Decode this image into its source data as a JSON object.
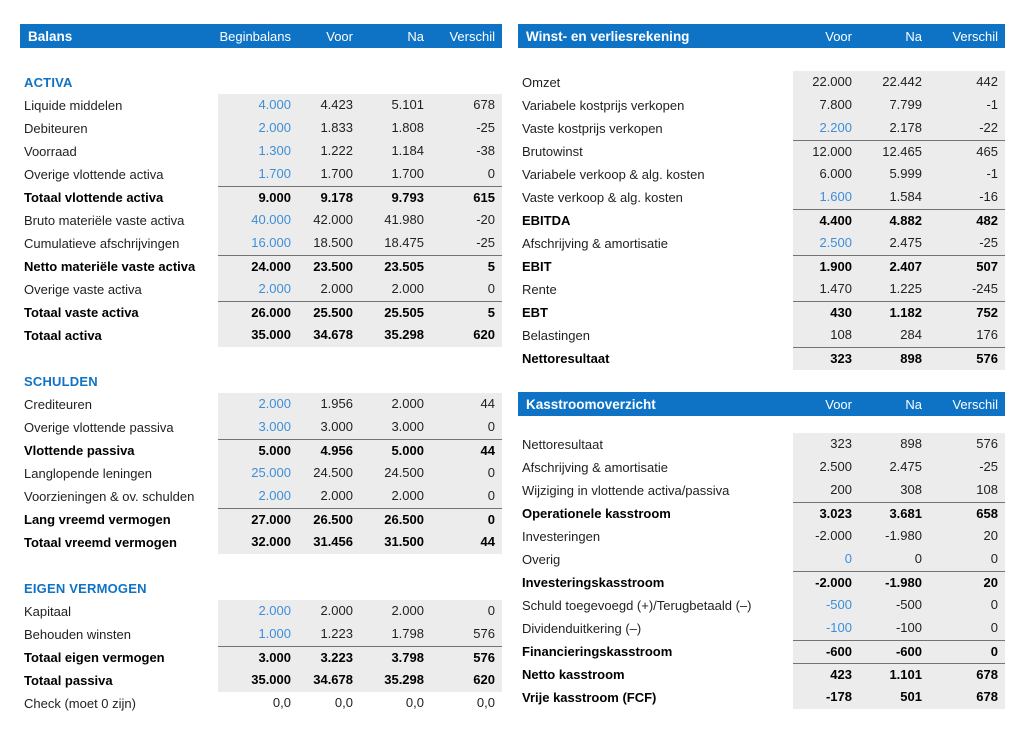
{
  "colors": {
    "header_bar_blue": "#0e73c5",
    "section_heading_blue": "#0f72c4",
    "input_value_blue": "#3f8ed8",
    "calc_block_gray": "#ececec",
    "subtotal_rule_gray": "#737373",
    "text": "#1f1f1f"
  },
  "balans": {
    "title": "Balans",
    "columns": [
      "Beginbalans",
      "Voor",
      "Na",
      "Verschil"
    ],
    "rows": [
      {
        "type": "section",
        "label": "ACTIVA"
      },
      {
        "label": "Liquide middelen",
        "values": [
          "4.000",
          "4.423",
          "5.101",
          "678"
        ],
        "gray": true,
        "blue": [
          0
        ]
      },
      {
        "label": "Debiteuren",
        "values": [
          "2.000",
          "1.833",
          "1.808",
          "-25"
        ],
        "gray": true,
        "blue": [
          0
        ]
      },
      {
        "label": "Voorraad",
        "values": [
          "1.300",
          "1.222",
          "1.184",
          "-38"
        ],
        "gray": true,
        "blue": [
          0
        ]
      },
      {
        "label": "Overige vlottende activa",
        "values": [
          "1.700",
          "1.700",
          "1.700",
          "0"
        ],
        "gray": true,
        "blue": [
          0
        ]
      },
      {
        "label": "Totaal vlottende activa",
        "values": [
          "9.000",
          "9.178",
          "9.793",
          "615"
        ],
        "gray": true,
        "bold": true,
        "line": true
      },
      {
        "label": "Bruto materiële vaste activa",
        "values": [
          "40.000",
          "42.000",
          "41.980",
          "-20"
        ],
        "gray": true,
        "blue": [
          0
        ]
      },
      {
        "label": "Cumulatieve afschrijvingen",
        "values": [
          "16.000",
          "18.500",
          "18.475",
          "-25"
        ],
        "gray": true,
        "blue": [
          0
        ]
      },
      {
        "label": "Netto materiële vaste activa",
        "values": [
          "24.000",
          "23.500",
          "23.505",
          "5"
        ],
        "gray": true,
        "bold": true,
        "line": true
      },
      {
        "label": "Overige vaste activa",
        "values": [
          "2.000",
          "2.000",
          "2.000",
          "0"
        ],
        "gray": true,
        "blue": [
          0
        ]
      },
      {
        "label": "Totaal vaste activa",
        "values": [
          "26.000",
          "25.500",
          "25.505",
          "5"
        ],
        "gray": true,
        "bold": true,
        "line": true
      },
      {
        "label": "Totaal activa",
        "values": [
          "35.000",
          "34.678",
          "35.298",
          "620"
        ],
        "gray": true,
        "bold": true
      },
      {
        "type": "blank"
      },
      {
        "type": "section",
        "label": "SCHULDEN"
      },
      {
        "label": "Crediteuren",
        "values": [
          "2.000",
          "1.956",
          "2.000",
          "44"
        ],
        "gray": true,
        "blue": [
          0
        ]
      },
      {
        "label": "Overige vlottende passiva",
        "values": [
          "3.000",
          "3.000",
          "3.000",
          "0"
        ],
        "gray": true,
        "blue": [
          0
        ]
      },
      {
        "label": "Vlottende passiva",
        "values": [
          "5.000",
          "4.956",
          "5.000",
          "44"
        ],
        "gray": true,
        "bold": true,
        "line": true
      },
      {
        "label": "Langlopende leningen",
        "values": [
          "25.000",
          "24.500",
          "24.500",
          "0"
        ],
        "gray": true,
        "blue": [
          0
        ]
      },
      {
        "label": "Voorzieningen & ov. schulden",
        "values": [
          "2.000",
          "2.000",
          "2.000",
          "0"
        ],
        "gray": true,
        "blue": [
          0
        ]
      },
      {
        "label": "Lang vreemd vermogen",
        "values": [
          "27.000",
          "26.500",
          "26.500",
          "0"
        ],
        "gray": true,
        "bold": true,
        "line": true
      },
      {
        "label": "Totaal vreemd vermogen",
        "values": [
          "32.000",
          "31.456",
          "31.500",
          "44"
        ],
        "gray": true,
        "bold": true
      },
      {
        "type": "blank"
      },
      {
        "type": "section",
        "label": "EIGEN VERMOGEN"
      },
      {
        "label": "Kapitaal",
        "values": [
          "2.000",
          "2.000",
          "2.000",
          "0"
        ],
        "gray": true,
        "blue": [
          0
        ]
      },
      {
        "label": "Behouden winsten",
        "values": [
          "1.000",
          "1.223",
          "1.798",
          "576"
        ],
        "gray": true,
        "blue": [
          0
        ]
      },
      {
        "label": "Totaal eigen vermogen",
        "values": [
          "3.000",
          "3.223",
          "3.798",
          "576"
        ],
        "gray": true,
        "bold": true,
        "line": true
      },
      {
        "label": "Totaal passiva",
        "values": [
          "35.000",
          "34.678",
          "35.298",
          "620"
        ],
        "gray": true,
        "bold": true
      },
      {
        "label": "Check (moet 0 zijn)",
        "values": [
          "0,0",
          "0,0",
          "0,0",
          "0,0"
        ]
      }
    ]
  },
  "pnl": {
    "title": "Winst- en verliesrekening",
    "columns": [
      "Voor",
      "Na",
      "Verschil"
    ],
    "rows": [
      {
        "label": "Omzet",
        "values": [
          "22.000",
          "22.442",
          "442"
        ],
        "gray": true
      },
      {
        "label": "Variabele kostprijs verkopen",
        "values": [
          "7.800",
          "7.799",
          "-1"
        ],
        "gray": true
      },
      {
        "label": "Vaste kostprijs verkopen",
        "values": [
          "2.200",
          "2.178",
          "-22"
        ],
        "gray": true,
        "blue": [
          0
        ]
      },
      {
        "label": "Brutowinst",
        "values": [
          "12.000",
          "12.465",
          "465"
        ],
        "gray": true,
        "line": true
      },
      {
        "label": "Variabele verkoop & alg. kosten",
        "values": [
          "6.000",
          "5.999",
          "-1"
        ],
        "gray": true
      },
      {
        "label": "Vaste verkoop & alg. kosten",
        "values": [
          "1.600",
          "1.584",
          "-16"
        ],
        "gray": true,
        "blue": [
          0
        ]
      },
      {
        "label": "EBITDA",
        "values": [
          "4.400",
          "4.882",
          "482"
        ],
        "gray": true,
        "bold": true,
        "line": true
      },
      {
        "label": "Afschrijving & amortisatie",
        "values": [
          "2.500",
          "2.475",
          "-25"
        ],
        "gray": true,
        "blue": [
          0
        ]
      },
      {
        "label": "EBIT",
        "values": [
          "1.900",
          "2.407",
          "507"
        ],
        "gray": true,
        "bold": true,
        "line": true
      },
      {
        "label": "Rente",
        "values": [
          "1.470",
          "1.225",
          "-245"
        ],
        "gray": true
      },
      {
        "label": "EBT",
        "values": [
          "430",
          "1.182",
          "752"
        ],
        "gray": true,
        "bold": true,
        "line": true
      },
      {
        "label": "Belastingen",
        "values": [
          "108",
          "284",
          "176"
        ],
        "gray": true
      },
      {
        "label": "Nettoresultaat",
        "values": [
          "323",
          "898",
          "576"
        ],
        "gray": true,
        "bold": true,
        "line": true
      }
    ]
  },
  "cashflow": {
    "title": "Kasstroomoverzicht",
    "columns": [
      "Voor",
      "Na",
      "Verschil"
    ],
    "rows": [
      {
        "label": "Nettoresultaat",
        "values": [
          "323",
          "898",
          "576"
        ],
        "gray": true
      },
      {
        "label": "Afschrijving & amortisatie",
        "values": [
          "2.500",
          "2.475",
          "-25"
        ],
        "gray": true
      },
      {
        "label": "Wijziging in vlottende activa/passiva",
        "values": [
          "200",
          "308",
          "108"
        ],
        "gray": true
      },
      {
        "label": "Operationele kasstroom",
        "values": [
          "3.023",
          "3.681",
          "658"
        ],
        "gray": true,
        "bold": true,
        "line": true
      },
      {
        "label": "Investeringen",
        "values": [
          "-2.000",
          "-1.980",
          "20"
        ],
        "gray": true
      },
      {
        "label": "Overig",
        "values": [
          "0",
          "0",
          "0"
        ],
        "gray": true,
        "blue": [
          0
        ]
      },
      {
        "label": "Investeringskasstroom",
        "values": [
          "-2.000",
          "-1.980",
          "20"
        ],
        "gray": true,
        "bold": true,
        "line": true
      },
      {
        "label": "Schuld toegevoegd (+)/Terugbetaald (–)",
        "values": [
          "-500",
          "-500",
          "0"
        ],
        "gray": true,
        "blue": [
          0
        ]
      },
      {
        "label": "Dividenduitkering (–)",
        "values": [
          "-100",
          "-100",
          "0"
        ],
        "gray": true,
        "blue": [
          0
        ]
      },
      {
        "label": "Financieringskasstroom",
        "values": [
          "-600",
          "-600",
          "0"
        ],
        "gray": true,
        "bold": true,
        "line": true
      },
      {
        "label": "Netto kasstroom",
        "values": [
          "423",
          "1.101",
          "678"
        ],
        "gray": true,
        "bold": true,
        "line": true
      },
      {
        "label": "Vrije kasstroom (FCF)",
        "values": [
          "-178",
          "501",
          "678"
        ],
        "gray": true,
        "bold": true
      }
    ]
  }
}
